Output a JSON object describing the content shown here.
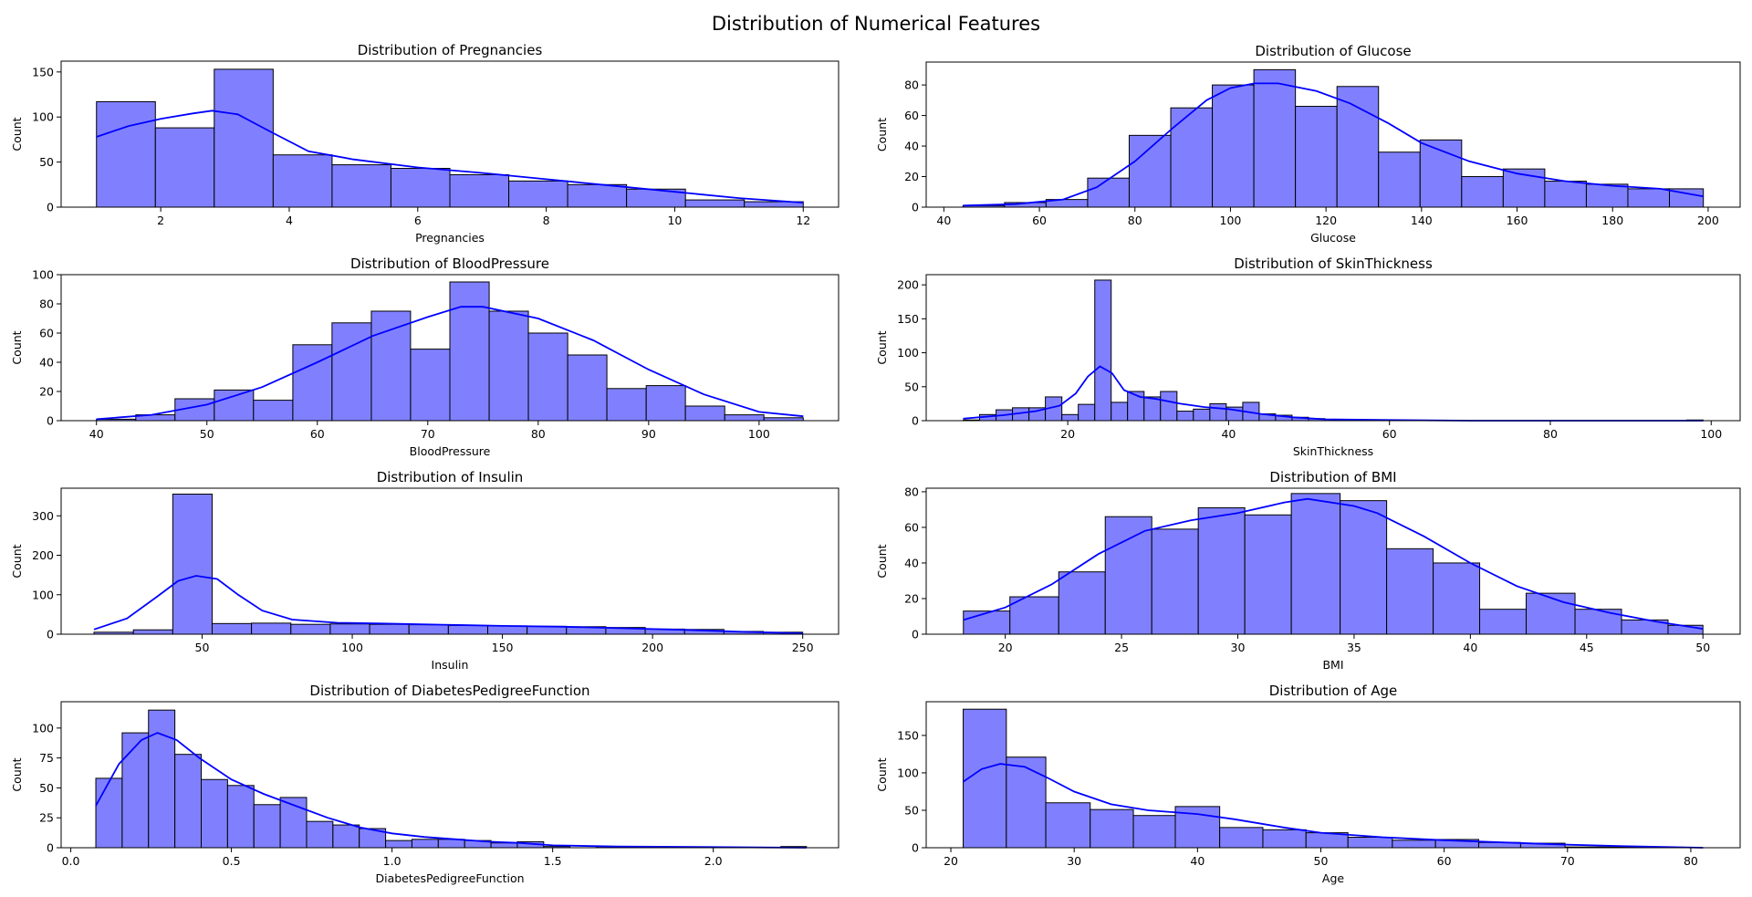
{
  "figure": {
    "title": "Distribution of Numerical Features"
  },
  "style": {
    "bar_fill": "#8080ff",
    "bar_edge": "#000000",
    "kde_color": "#0000ff",
    "ylabel": "Count"
  },
  "chart_data": [
    {
      "type": "bar",
      "title": "Distribution of Pregnancies",
      "xlabel": "Pregnancies",
      "ylabel": "Count",
      "xlim": [
        0.45,
        12.55
      ],
      "ylim": [
        0,
        162
      ],
      "xticks": [
        2,
        4,
        6,
        8,
        10,
        12
      ],
      "yticks": [
        0,
        50,
        100,
        150
      ],
      "bin_edges": [
        1,
        1.917,
        2.833,
        3.75,
        4.667,
        5.583,
        6.5,
        7.417,
        8.333,
        9.25,
        10.167,
        11.083,
        12
      ],
      "counts": [
        117,
        88,
        153,
        58,
        47,
        43,
        36,
        29,
        25,
        20,
        8,
        6
      ],
      "kde": [
        [
          1,
          78
        ],
        [
          1.5,
          90
        ],
        [
          2,
          98
        ],
        [
          2.5,
          104
        ],
        [
          2.8,
          107
        ],
        [
          3.2,
          103
        ],
        [
          3.7,
          84
        ],
        [
          4.3,
          62
        ],
        [
          5,
          53
        ],
        [
          6,
          44
        ],
        [
          7,
          38
        ],
        [
          8,
          31
        ],
        [
          9,
          24
        ],
        [
          10,
          17
        ],
        [
          11,
          10
        ],
        [
          12,
          5
        ]
      ]
    },
    {
      "type": "bar",
      "title": "Distribution of Glucose",
      "xlabel": "Glucose",
      "ylabel": "Count",
      "xlim": [
        36.3,
        206.7
      ],
      "ylim": [
        0,
        95
      ],
      "xticks": [
        40,
        60,
        80,
        100,
        120,
        140,
        160,
        180,
        200
      ],
      "yticks": [
        0,
        20,
        40,
        60,
        80
      ],
      "bin_edges": [
        44,
        52.7,
        61.4,
        70.1,
        78.8,
        87.5,
        96.2,
        104.9,
        113.6,
        122.3,
        131,
        139.7,
        148.4,
        157.1,
        165.8,
        174.5,
        183.2,
        191.9,
        199
      ],
      "counts": [
        1,
        3,
        5,
        19,
        47,
        65,
        80,
        90,
        66,
        79,
        36,
        44,
        20,
        25,
        17,
        15,
        12,
        12
      ],
      "kde": [
        [
          44,
          1
        ],
        [
          55,
          2
        ],
        [
          65,
          5
        ],
        [
          72,
          13
        ],
        [
          80,
          30
        ],
        [
          88,
          52
        ],
        [
          95,
          70
        ],
        [
          100,
          78
        ],
        [
          105,
          81
        ],
        [
          110,
          81
        ],
        [
          118,
          76
        ],
        [
          125,
          68
        ],
        [
          133,
          55
        ],
        [
          140,
          42
        ],
        [
          150,
          30
        ],
        [
          160,
          22
        ],
        [
          170,
          17
        ],
        [
          180,
          14
        ],
        [
          190,
          12
        ],
        [
          199,
          7
        ]
      ]
    },
    {
      "type": "bar",
      "title": "Distribution of BloodPressure",
      "xlabel": "BloodPressure",
      "ylabel": "Count",
      "xlim": [
        36.8,
        107.2
      ],
      "ylim": [
        0,
        100
      ],
      "xticks": [
        40,
        50,
        60,
        70,
        80,
        90,
        100
      ],
      "yticks": [
        0,
        20,
        40,
        60,
        80,
        100
      ],
      "bin_edges": [
        40,
        43.56,
        47.11,
        50.67,
        54.22,
        57.78,
        61.33,
        64.89,
        68.44,
        72,
        75.56,
        79.11,
        82.67,
        86.22,
        89.78,
        93.33,
        96.89,
        100.44,
        104
      ],
      "counts": [
        1,
        4,
        15,
        21,
        14,
        52,
        67,
        75,
        49,
        95,
        75,
        60,
        45,
        22,
        24,
        10,
        4,
        2
      ],
      "kde": [
        [
          40,
          1
        ],
        [
          45,
          4
        ],
        [
          50,
          11
        ],
        [
          55,
          23
        ],
        [
          60,
          40
        ],
        [
          65,
          58
        ],
        [
          70,
          71
        ],
        [
          73,
          78
        ],
        [
          75,
          78
        ],
        [
          80,
          70
        ],
        [
          85,
          55
        ],
        [
          90,
          35
        ],
        [
          95,
          18
        ],
        [
          100,
          6
        ],
        [
          104,
          3
        ]
      ]
    },
    {
      "type": "bar",
      "title": "Distribution of SkinThickness",
      "xlabel": "SkinThickness",
      "ylabel": "Count",
      "xlim": [
        2.4,
        103.6
      ],
      "ylim": [
        0,
        215
      ],
      "xticks": [
        20,
        40,
        60,
        80,
        100
      ],
      "yticks": [
        0,
        50,
        100,
        150,
        200
      ],
      "bin_edges": [
        7,
        9.04,
        11.09,
        13.13,
        15.18,
        17.22,
        19.27,
        21.31,
        23.36,
        25.4,
        27.44,
        29.49,
        31.53,
        33.58,
        35.62,
        37.67,
        39.71,
        41.76,
        43.8,
        45.84,
        47.89,
        49.93,
        51.98,
        54.02,
        56.07,
        58.11,
        60.16,
        62.2,
        64.24,
        66.29,
        68.33,
        70.38,
        72.42,
        74.47,
        76.51,
        78.56,
        80.6,
        82.64,
        84.69,
        86.73,
        88.78,
        90.82,
        92.87,
        94.91,
        96.96,
        99
      ],
      "counts": [
        1,
        9,
        16,
        19,
        19,
        35,
        9,
        24,
        207,
        27,
        43,
        35,
        43,
        14,
        17,
        25,
        20,
        27,
        10,
        8,
        5,
        3,
        2,
        1,
        0,
        0,
        0,
        0,
        0,
        0,
        0,
        0,
        0,
        0,
        0,
        0,
        0,
        0,
        0,
        0,
        0,
        0,
        0,
        0,
        1
      ],
      "kde": [
        [
          7,
          3
        ],
        [
          12,
          8
        ],
        [
          16,
          14
        ],
        [
          19,
          22
        ],
        [
          21,
          40
        ],
        [
          22.5,
          65
        ],
        [
          24,
          80
        ],
        [
          25.5,
          70
        ],
        [
          27,
          45
        ],
        [
          29,
          35
        ],
        [
          31,
          32
        ],
        [
          34,
          25
        ],
        [
          37,
          20
        ],
        [
          40,
          17
        ],
        [
          44,
          10
        ],
        [
          48,
          5
        ],
        [
          52,
          2
        ],
        [
          60,
          1
        ],
        [
          70,
          0
        ],
        [
          99,
          0
        ]
      ]
    },
    {
      "type": "bar",
      "title": "Distribution of Insulin",
      "xlabel": "Insulin",
      "ylabel": "Count",
      "xlim": [
        3.05,
        261.95
      ],
      "ylim": [
        0,
        370
      ],
      "xticks": [
        50,
        100,
        150,
        200,
        250
      ],
      "yticks": [
        0,
        100,
        200,
        300
      ],
      "bin_edges": [
        14,
        27.11,
        40.22,
        53.33,
        66.44,
        79.56,
        92.67,
        105.78,
        118.89,
        132,
        145.11,
        158.22,
        171.33,
        184.44,
        197.56,
        210.67,
        223.78,
        236.89,
        250
      ],
      "counts": [
        5,
        11,
        355,
        27,
        28,
        25,
        26,
        25,
        24,
        22,
        21,
        20,
        19,
        17,
        13,
        12,
        7,
        5
      ],
      "kde": [
        [
          14,
          12
        ],
        [
          25,
          40
        ],
        [
          35,
          95
        ],
        [
          42,
          135
        ],
        [
          48,
          148
        ],
        [
          55,
          140
        ],
        [
          62,
          100
        ],
        [
          70,
          60
        ],
        [
          80,
          37
        ],
        [
          95,
          29
        ],
        [
          110,
          27
        ],
        [
          130,
          24
        ],
        [
          150,
          21
        ],
        [
          170,
          19
        ],
        [
          190,
          15
        ],
        [
          210,
          11
        ],
        [
          230,
          6
        ],
        [
          250,
          2
        ]
      ]
    },
    {
      "type": "bar",
      "title": "Distribution of BMI",
      "xlabel": "BMI",
      "ylabel": "Count",
      "xlim": [
        16.6,
        51.6
      ],
      "ylim": [
        0,
        82
      ],
      "xticks": [
        20,
        25,
        30,
        35,
        40,
        45,
        50
      ],
      "yticks": [
        0,
        20,
        40,
        60,
        80
      ],
      "bin_edges": [
        18.2,
        20.2,
        22.3,
        24.3,
        26.3,
        28.3,
        30.3,
        32.3,
        34.4,
        36.4,
        38.4,
        40.4,
        42.4,
        44.5,
        46.5,
        48.5,
        50
      ],
      "counts": [
        13,
        21,
        35,
        66,
        59,
        71,
        67,
        79,
        75,
        48,
        40,
        14,
        23,
        14,
        8,
        5
      ],
      "kde": [
        [
          18.2,
          8
        ],
        [
          20,
          15
        ],
        [
          22,
          28
        ],
        [
          24,
          45
        ],
        [
          26,
          58
        ],
        [
          28,
          64
        ],
        [
          30,
          68
        ],
        [
          32,
          74
        ],
        [
          33,
          76
        ],
        [
          35,
          72
        ],
        [
          36,
          68
        ],
        [
          38,
          55
        ],
        [
          40,
          40
        ],
        [
          42,
          27
        ],
        [
          44,
          18
        ],
        [
          46,
          12
        ],
        [
          48,
          7
        ],
        [
          50,
          3
        ]
      ]
    },
    {
      "type": "bar",
      "title": "Distribution of DiabetesPedigreeFunction",
      "xlabel": "DiabetesPedigreeFunction",
      "ylabel": "Count",
      "xlim": [
        -0.03,
        2.39
      ],
      "ylim": [
        0,
        122
      ],
      "xticks": [
        0.0,
        0.5,
        1.0,
        1.5,
        2.0
      ],
      "yticks": [
        0,
        25,
        50,
        75,
        100
      ],
      "bin_edges": [
        0.078,
        0.16,
        0.242,
        0.324,
        0.406,
        0.488,
        0.57,
        0.652,
        0.734,
        0.816,
        0.898,
        0.98,
        1.062,
        1.144,
        1.226,
        1.308,
        1.39,
        1.472,
        1.554,
        1.636,
        1.718,
        1.8,
        1.882,
        1.964,
        2.046,
        2.128,
        2.21,
        2.29
      ],
      "counts": [
        58,
        96,
        115,
        78,
        57,
        52,
        36,
        42,
        22,
        19,
        16,
        6,
        7,
        7,
        6,
        4,
        5,
        1,
        0,
        1,
        1,
        0,
        0,
        0,
        0,
        0,
        1
      ],
      "kde": [
        [
          0.078,
          35
        ],
        [
          0.15,
          70
        ],
        [
          0.22,
          90
        ],
        [
          0.27,
          96
        ],
        [
          0.33,
          90
        ],
        [
          0.4,
          75
        ],
        [
          0.5,
          57
        ],
        [
          0.6,
          45
        ],
        [
          0.7,
          35
        ],
        [
          0.8,
          25
        ],
        [
          0.9,
          17
        ],
        [
          1.0,
          12
        ],
        [
          1.1,
          9
        ],
        [
          1.2,
          7
        ],
        [
          1.3,
          5
        ],
        [
          1.4,
          4
        ],
        [
          1.5,
          2
        ],
        [
          1.7,
          1
        ],
        [
          2.0,
          0.5
        ],
        [
          2.29,
          0
        ]
      ]
    },
    {
      "type": "bar",
      "title": "Distribution of Age",
      "xlabel": "Age",
      "ylabel": "Count",
      "xlim": [
        18,
        84
      ],
      "ylim": [
        0,
        195
      ],
      "xticks": [
        20,
        30,
        40,
        50,
        60,
        70,
        80
      ],
      "yticks": [
        0,
        50,
        100,
        150
      ],
      "bin_edges": [
        21,
        24.5,
        27.7,
        31.3,
        34.8,
        38.2,
        41.8,
        45.3,
        48.8,
        52.2,
        55.8,
        59.3,
        62.8,
        66.2,
        69.8,
        73.3,
        76.8,
        81
      ],
      "counts": [
        185,
        121,
        60,
        51,
        43,
        55,
        27,
        24,
        20,
        14,
        10,
        11,
        7,
        6,
        1,
        1,
        0
      ],
      "kde": [
        [
          21,
          88
        ],
        [
          22.5,
          105
        ],
        [
          24,
          112
        ],
        [
          26,
          108
        ],
        [
          28,
          92
        ],
        [
          30,
          75
        ],
        [
          33,
          58
        ],
        [
          36,
          50
        ],
        [
          40,
          45
        ],
        [
          43,
          38
        ],
        [
          47,
          27
        ],
        [
          50,
          20
        ],
        [
          55,
          14
        ],
        [
          60,
          10
        ],
        [
          65,
          7
        ],
        [
          70,
          4
        ],
        [
          75,
          2
        ],
        [
          81,
          0
        ]
      ]
    }
  ]
}
